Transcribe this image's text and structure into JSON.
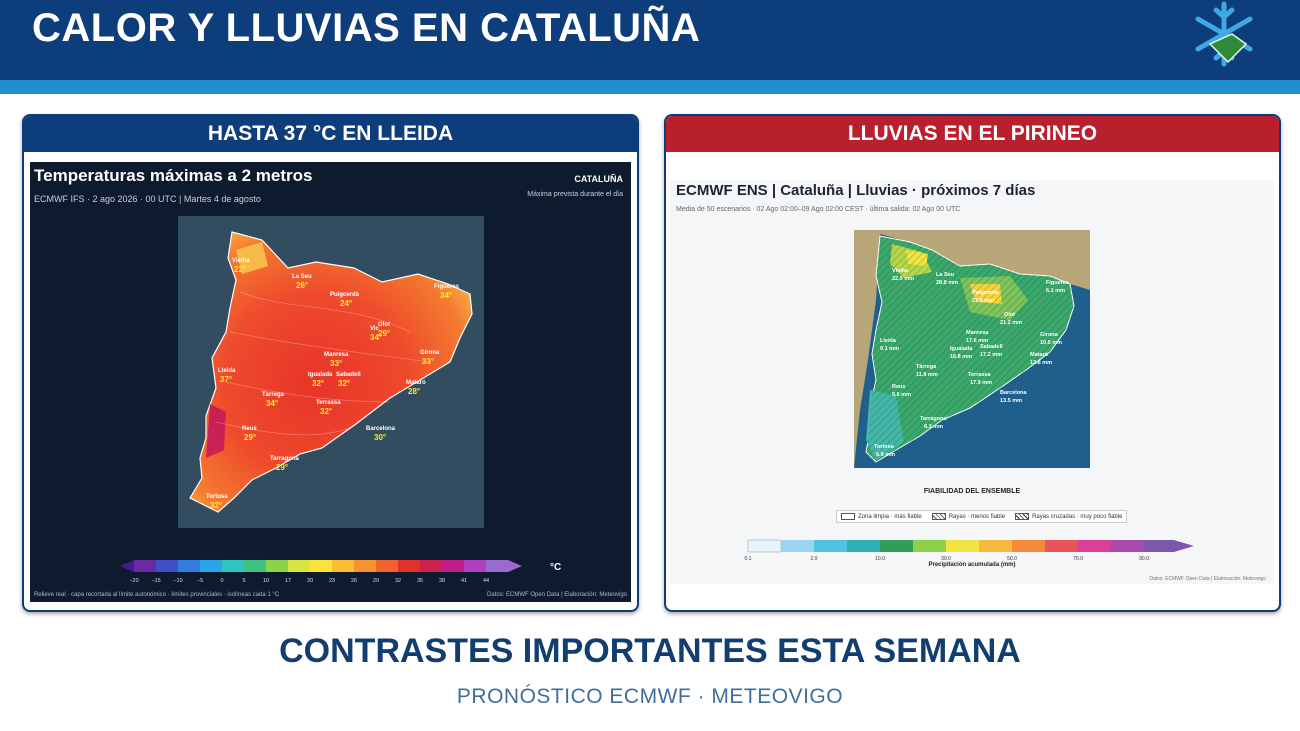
{
  "header": {
    "title": "CALOR Y LLUVIAS EN CATALUÑA",
    "logo_icon": "snowflake-logo-icon"
  },
  "panel_temp": {
    "heading": "HASTA 37 °C EN LLEIDA",
    "map_title": "Temperaturas máximas a 2 metros",
    "map_subtitle": "ECMWF IFS · 2 ago 2026 · 00 UTC  |  Martes 4 de agosto",
    "region": "CATALUÑA",
    "note": "Máxima prevista durante el día",
    "unit": "°C",
    "colorbar_ticks": [
      "−20",
      "−15",
      "−10",
      "−5",
      "0",
      "5",
      "10",
      "17",
      "20",
      "23",
      "26",
      "29",
      "32",
      "35",
      "38",
      "41",
      "44"
    ],
    "footer_left": "Relieve real · capa recortada al límite autonómico · límites provinciales · isolíneas cada 1 °C",
    "footer_right": "Datos: ECMWF Open Data | Elaboración: Meteovigo",
    "cities": [
      {
        "name": "Vielha",
        "value": "22°"
      },
      {
        "name": "La Seu",
        "value": "26°"
      },
      {
        "name": "Puigcerdà",
        "value": "24°"
      },
      {
        "name": "Figueres",
        "value": "34°"
      },
      {
        "name": "Olot",
        "value": "29°"
      },
      {
        "name": "Vic",
        "value": "34°"
      },
      {
        "name": "Manresa",
        "value": "33°"
      },
      {
        "name": "Girona",
        "value": "33°"
      },
      {
        "name": "Lleida",
        "value": "37°"
      },
      {
        "name": "Igualada",
        "value": "32°"
      },
      {
        "name": "Sabadell",
        "value": "32°"
      },
      {
        "name": "Mataró",
        "value": "28°"
      },
      {
        "name": "Tàrrega",
        "value": "34°"
      },
      {
        "name": "Terrassa",
        "value": "32°"
      },
      {
        "name": "Reus",
        "value": "29°"
      },
      {
        "name": "Barcelona",
        "value": "30°"
      },
      {
        "name": "Tarragona",
        "value": "29°"
      },
      {
        "name": "Tortosa",
        "value": "32°"
      }
    ]
  },
  "panel_rain": {
    "heading": "LLUVIAS EN EL PIRINEO",
    "map_title": "ECMWF ENS | Cataluña | Lluvias · próximos 7 días",
    "map_subtitle": "Media de 50 escenarios · 02 Ago 02:00–09 Ago 02:00 CEST · última salida: 02 Ago 00 UTC",
    "legend_title": "FIABILIDAD DEL ENSEMBLE",
    "legend_items": [
      "Zona limpia · más fiable",
      "Rayas · menos fiable",
      "Rayas cruzadas · muy poco fiable"
    ],
    "colorbar_ticks": [
      "0.1",
      "2.0",
      "10.0",
      "30.0",
      "50.0",
      "70.0",
      "90.0"
    ],
    "colorbar_label": "Precipitación acumulada (mm)",
    "footer": "Datos: ECMWF Open Data | Elaboración: Meteovigo",
    "cities": [
      {
        "name": "Vielha",
        "value": "22.5 mm"
      },
      {
        "name": "La Seu",
        "value": "28.8 mm"
      },
      {
        "name": "Puigcerdà",
        "value": "27.0 mm"
      },
      {
        "name": "Figueres",
        "value": "6.1 mm"
      },
      {
        "name": "Olot",
        "value": "21.2 mm"
      },
      {
        "name": "Manresa",
        "value": "17.6 mm"
      },
      {
        "name": "Igualada",
        "value": "16.8 mm"
      },
      {
        "name": "Sabadell",
        "value": "17.2 mm"
      },
      {
        "name": "Girona",
        "value": "10.5 mm"
      },
      {
        "name": "Lleida",
        "value": "9.1 mm"
      },
      {
        "name": "Mataró",
        "value": "12.8 mm"
      },
      {
        "name": "Tàrrega",
        "value": "11.8 mm"
      },
      {
        "name": "Terrassa",
        "value": "17.9 mm"
      },
      {
        "name": "Reus",
        "value": "9.6 mm"
      },
      {
        "name": "Barcelona",
        "value": "13.5 mm"
      },
      {
        "name": "Tarragona",
        "value": "8.3 mm"
      },
      {
        "name": "Tortosa",
        "value": "6.9 mm"
      }
    ]
  },
  "footer": {
    "title": "CONTRASTES IMPORTANTES ESTA SEMANA",
    "subtitle": "PRONÓSTICO ECMWF · METEOVIGO"
  }
}
